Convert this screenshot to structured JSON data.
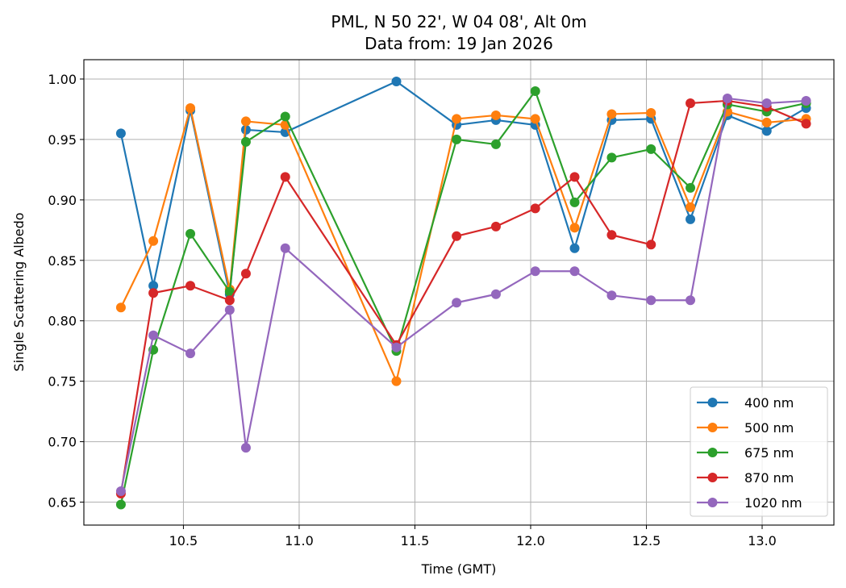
{
  "chart_data": {
    "type": "line",
    "title": [
      "PML, N 50 22', W 04 08', Alt 0m",
      "Data from: 19 Jan 2026"
    ],
    "xlabel": "Time (GMT)",
    "ylabel": "Single Scattering Albedo",
    "xlim": [
      10.07,
      13.31
    ],
    "ylim": [
      0.631,
      1.016
    ],
    "xticks": [
      10.5,
      11.0,
      11.5,
      12.0,
      12.5,
      13.0
    ],
    "xtick_labels": [
      "10.5",
      "11.0",
      "11.5",
      "12.0",
      "12.5",
      "13.0"
    ],
    "yticks": [
      0.65,
      0.7,
      0.75,
      0.8,
      0.85,
      0.9,
      0.95,
      1.0
    ],
    "ytick_labels": [
      "0.65",
      "0.70",
      "0.75",
      "0.80",
      "0.85",
      "0.90",
      "0.95",
      "1.00"
    ],
    "grid": true,
    "legend_position": "bottom-right",
    "x": [
      10.23,
      10.37,
      10.53,
      10.7,
      10.77,
      10.94,
      11.42,
      11.68,
      11.85,
      12.02,
      12.19,
      12.35,
      12.52,
      12.69,
      12.85,
      13.02,
      13.19
    ],
    "series": [
      {
        "name": "400 nm",
        "color": "#1f77b4",
        "values": [
          0.955,
          0.829,
          0.974,
          0.822,
          0.958,
          0.956,
          0.998,
          0.962,
          0.966,
          0.962,
          0.86,
          0.966,
          0.967,
          0.884,
          0.97,
          0.957,
          0.976
        ]
      },
      {
        "name": "500 nm",
        "color": "#ff7f0e",
        "values": [
          0.811,
          0.866,
          0.976,
          0.826,
          0.965,
          0.962,
          0.75,
          0.967,
          0.97,
          0.967,
          0.877,
          0.971,
          0.972,
          0.894,
          0.973,
          0.964,
          0.967
        ]
      },
      {
        "name": "675 nm",
        "color": "#2ca02c",
        "values": [
          0.648,
          0.776,
          0.872,
          0.824,
          0.948,
          0.969,
          0.775,
          0.95,
          0.946,
          0.99,
          0.898,
          0.935,
          0.942,
          0.91,
          0.979,
          0.973,
          0.98
        ]
      },
      {
        "name": "870 nm",
        "color": "#d62728",
        "values": [
          0.657,
          0.823,
          0.829,
          0.817,
          0.839,
          0.919,
          0.78,
          0.87,
          0.878,
          0.893,
          0.919,
          0.871,
          0.863,
          0.98,
          0.982,
          0.977,
          0.963
        ]
      },
      {
        "name": "1020 nm",
        "color": "#9467bd",
        "values": [
          0.659,
          0.788,
          0.773,
          0.809,
          0.695,
          0.86,
          0.778,
          0.815,
          0.822,
          0.841,
          0.841,
          0.821,
          0.817,
          0.817,
          0.984,
          0.98,
          0.982
        ]
      }
    ]
  }
}
